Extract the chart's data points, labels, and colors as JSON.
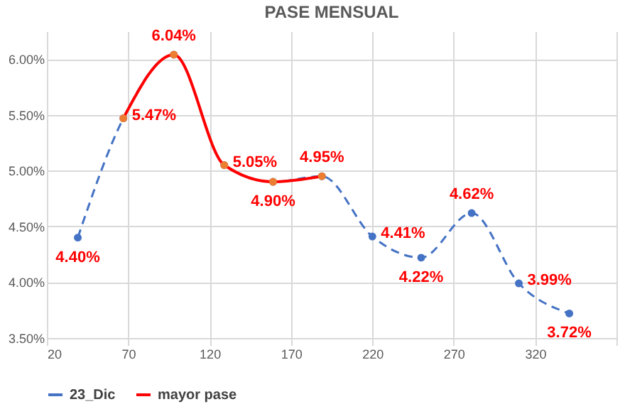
{
  "chart_data": {
    "type": "line",
    "title": "PASE MENSUAL",
    "xlim": [
      20,
      370
    ],
    "xticks": [
      20,
      70,
      120,
      170,
      220,
      270,
      320,
      {
        "value": 370,
        "label": null
      }
    ],
    "ylim": [
      3.5,
      6.25
    ],
    "yticks": [
      {
        "value": 3.5,
        "label": "3.50%"
      },
      {
        "value": 4.0,
        "label": "4.00%"
      },
      {
        "value": 4.5,
        "label": "4.50%"
      },
      {
        "value": 5.0,
        "label": "5.00%"
      },
      {
        "value": 5.5,
        "label": "5.50%"
      },
      {
        "value": 6.0,
        "label": "6.00%"
      }
    ],
    "grid": true,
    "legend": "bottom",
    "marker": "circle",
    "series": [
      {
        "name": "23_Dic",
        "color": "#4472c4",
        "line_style": "dashed",
        "x": [
          39,
          67,
          98,
          129,
          159,
          189,
          220,
          250,
          281,
          310,
          341
        ],
        "values": [
          4.4,
          5.47,
          6.04,
          5.05,
          4.9,
          4.95,
          4.41,
          4.22,
          4.62,
          3.99,
          3.72
        ],
        "value_labels": [
          "4.40%",
          "5.47%",
          "6.04%",
          "5.05%",
          "4.90%",
          "4.95%",
          "4.41%",
          "4.22%",
          "4.62%",
          "3.99%",
          "3.72%"
        ]
      },
      {
        "name": "mayor pase",
        "color": "#ff0000",
        "colors": [
          "#ed7d31",
          "#ed7d31",
          "#ed7d31",
          "#ed7d31",
          "#ed7d31"
        ],
        "line_style": "solid",
        "x": [
          67,
          98,
          129,
          159,
          189
        ],
        "values": [
          5.47,
          6.04,
          5.05,
          4.9,
          4.95
        ]
      }
    ]
  }
}
